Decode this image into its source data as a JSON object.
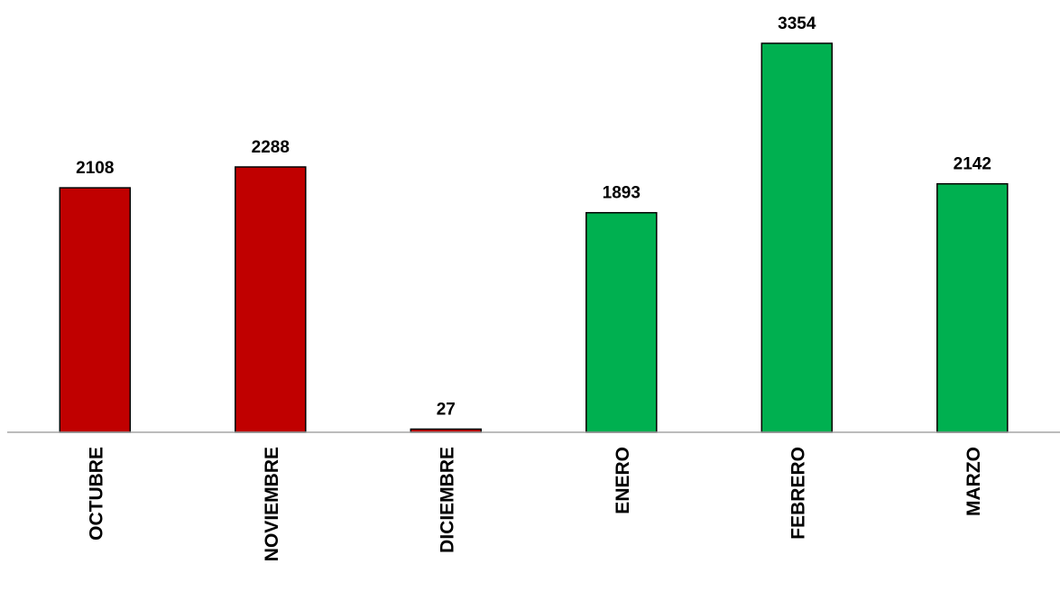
{
  "chart_data": {
    "type": "bar",
    "title": "",
    "xlabel": "",
    "ylabel": "",
    "categories": [
      "OCTUBRE",
      "NOVIEMBRE",
      "DICIEMBRE",
      "ENERO",
      "FEBRERO",
      "MARZO"
    ],
    "values": [
      2108,
      2288,
      27,
      1893,
      3354,
      2142
    ],
    "value_labels": [
      "2108",
      "2288",
      "27",
      "1893",
      "3354",
      "2142"
    ],
    "bar_colors": [
      "#c00000",
      "#c00000",
      "#c00000",
      "#00b050",
      "#00b050",
      "#00b050"
    ],
    "ylim": [
      0,
      3354
    ],
    "grid": false,
    "legend": "none",
    "category_label_orientation": "vertical"
  }
}
